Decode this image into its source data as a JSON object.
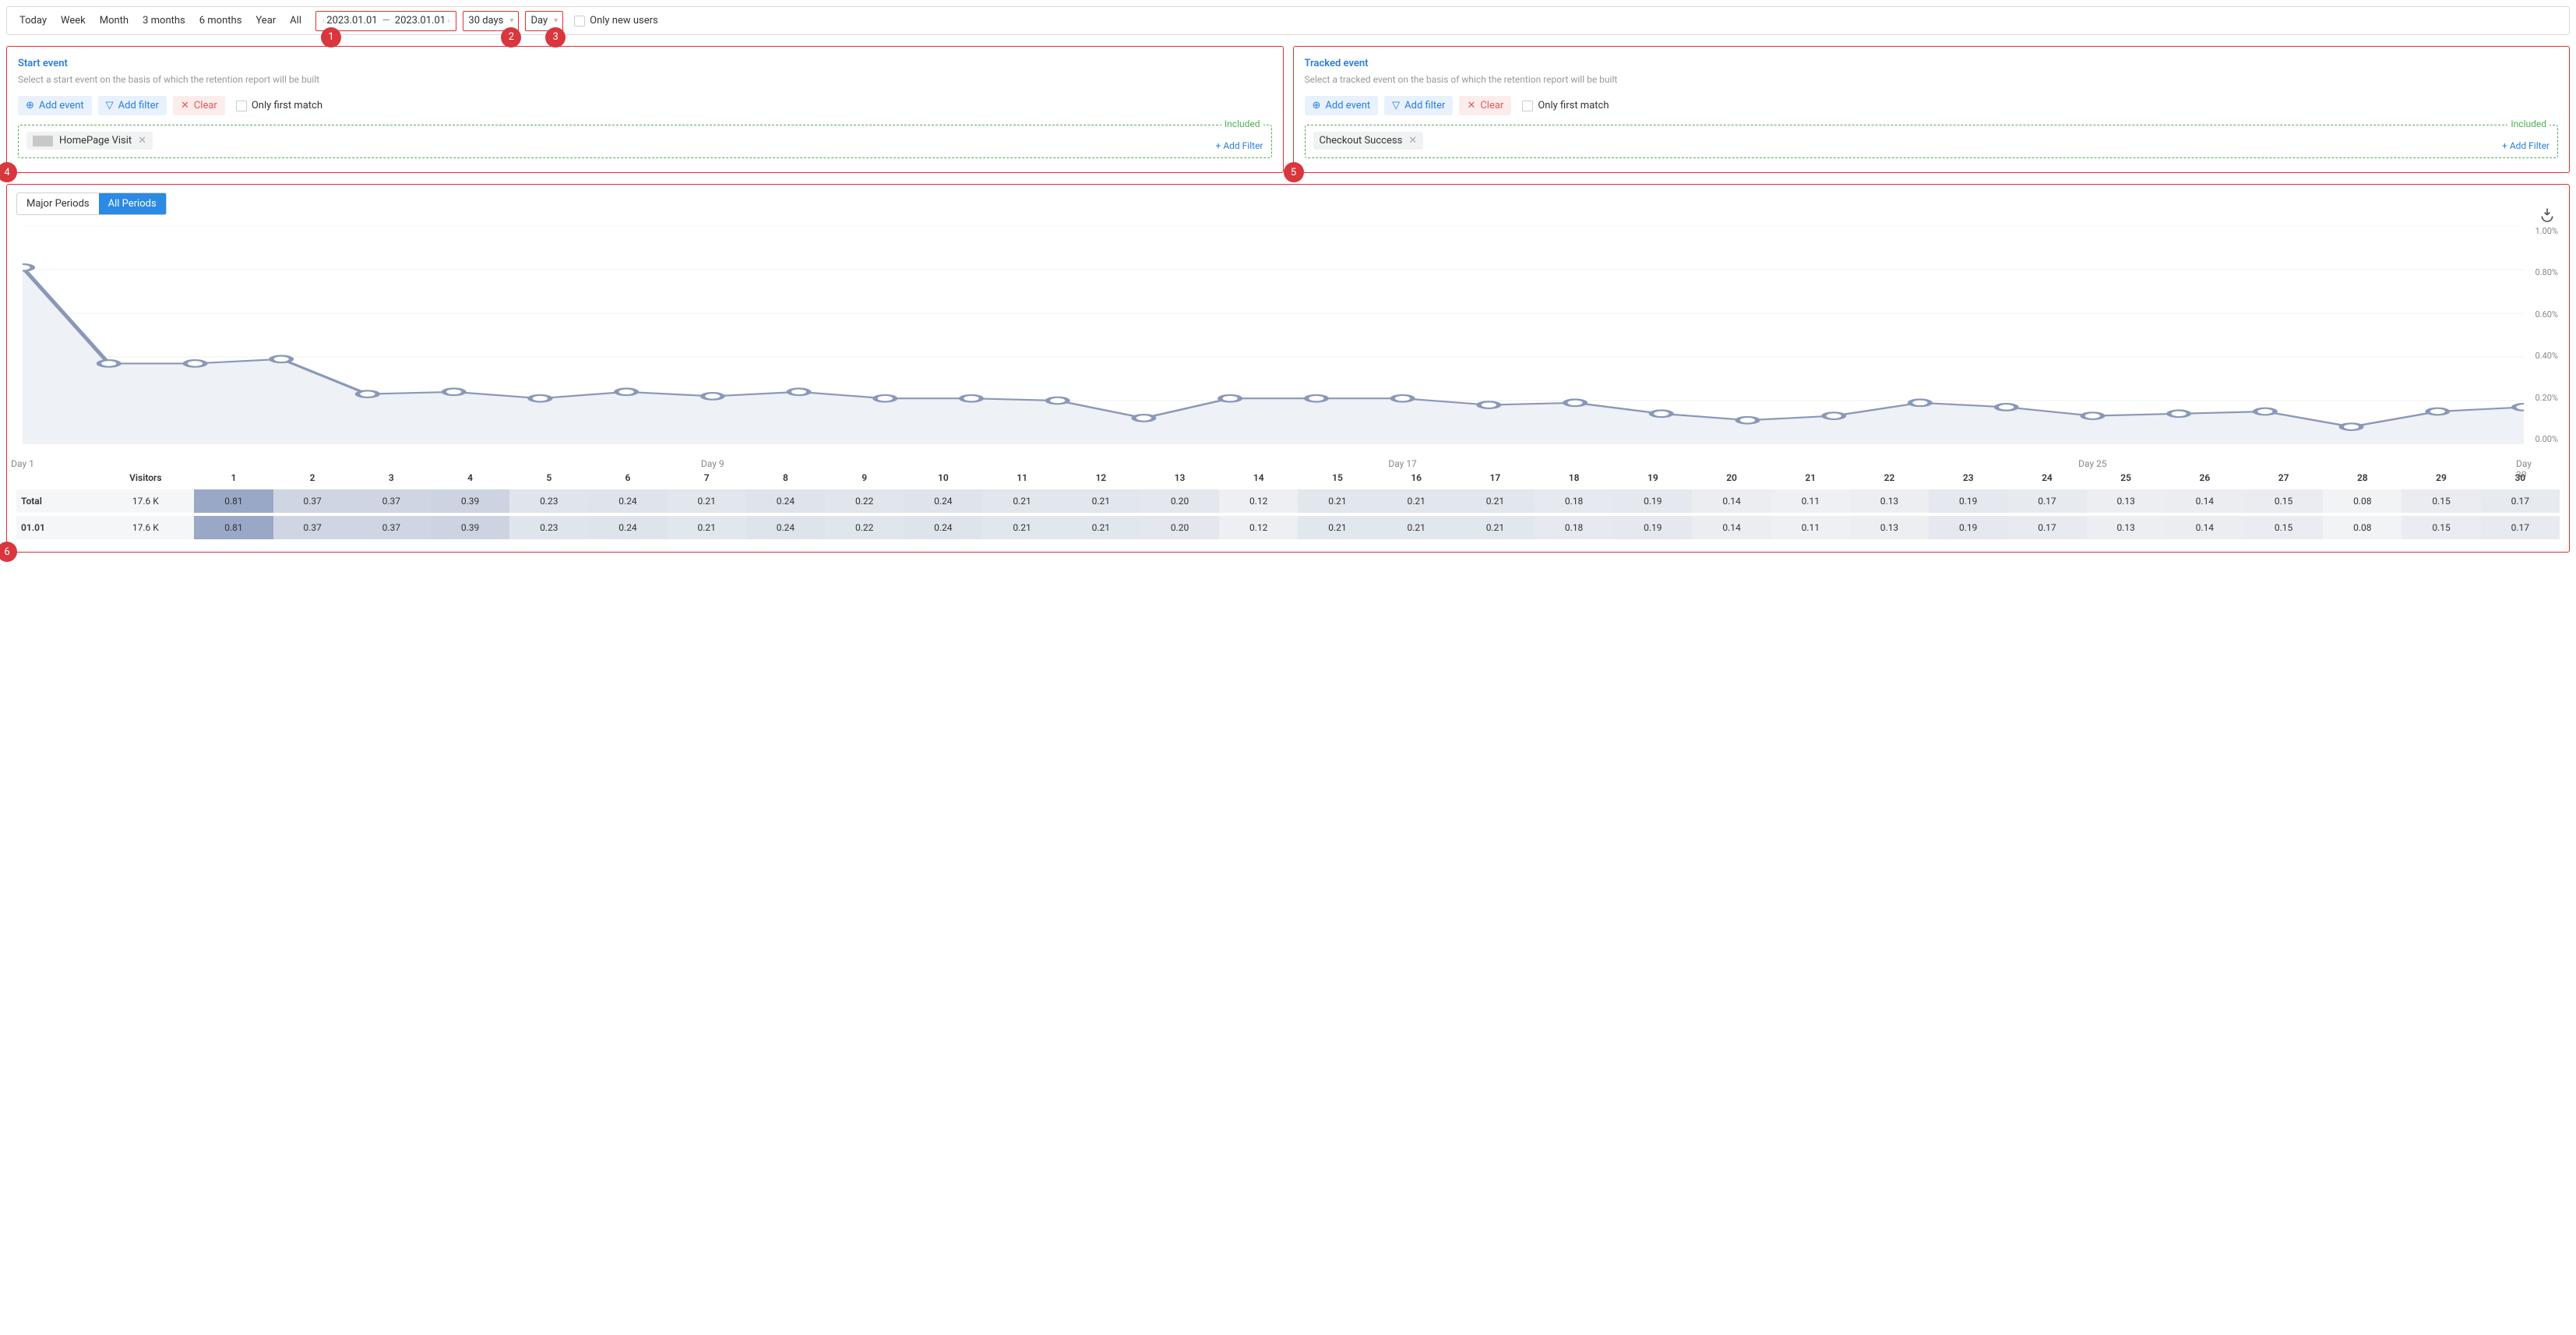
{
  "toolbar": {
    "periods": [
      "Today",
      "Week",
      "Month",
      "3 months",
      "6 months",
      "Year",
      "All"
    ],
    "date_from": "2023.01.01",
    "date_to": "2023.01.01",
    "range_label": "30 days",
    "granularity_label": "Day",
    "only_new_users_label": "Only new users"
  },
  "badges": {
    "b1": "1",
    "b2": "2",
    "b3": "3",
    "b4": "4",
    "b5": "5",
    "b6": "6"
  },
  "start_event": {
    "title": "Start event",
    "subtitle": "Select a start event on the basis of which the retention report will be built",
    "add_event": "Add event",
    "add_filter": "Add filter",
    "clear": "Clear",
    "only_first_match": "Only first match",
    "included_label": "Included",
    "tag_label": "HomePage Visit",
    "add_filter_link": "+  Add Filter"
  },
  "tracked_event": {
    "title": "Tracked event",
    "subtitle": "Select a tracked event on the basis of which the retention report will be built",
    "add_event": "Add event",
    "add_filter": "Add filter",
    "clear": "Clear",
    "only_first_match": "Only first match",
    "included_label": "Included",
    "tag_label": "Checkout Success",
    "add_filter_link": "+  Add Filter"
  },
  "chart": {
    "tabs": {
      "major": "Major Periods",
      "all": "All Periods"
    },
    "ylim": [
      0,
      1.0
    ],
    "yticks": [
      "1.00%",
      "0.80%",
      "0.60%",
      "0.40%",
      "0.20%",
      "0.00%"
    ],
    "xticks": [
      {
        "label": "Day 1",
        "idx": 0
      },
      {
        "label": "Day 9",
        "idx": 8
      },
      {
        "label": "Day 17",
        "idx": 16
      },
      {
        "label": "Day 25",
        "idx": 24
      },
      {
        "label": "Day 30",
        "idx": 29
      }
    ],
    "values": [
      0.81,
      0.37,
      0.37,
      0.39,
      0.23,
      0.24,
      0.21,
      0.24,
      0.22,
      0.24,
      0.21,
      0.21,
      0.2,
      0.12,
      0.21,
      0.21,
      0.21,
      0.18,
      0.19,
      0.14,
      0.11,
      0.13,
      0.19,
      0.17,
      0.13,
      0.14,
      0.15,
      0.08,
      0.15,
      0.17
    ],
    "line_color": "#8a98b8",
    "marker_fill": "#ffffff",
    "marker_stroke": "#8a98b8",
    "marker_radius": 4,
    "area_fill": "#eef1f6",
    "grid_color": "#f2f2f2"
  },
  "table": {
    "header_first": "Visitors",
    "day_headers": [
      "1",
      "2",
      "3",
      "4",
      "5",
      "6",
      "7",
      "8",
      "9",
      "10",
      "11",
      "12",
      "13",
      "14",
      "15",
      "16",
      "17",
      "18",
      "19",
      "20",
      "21",
      "22",
      "23",
      "24",
      "25",
      "26",
      "27",
      "28",
      "29",
      "30"
    ],
    "rows": [
      {
        "label": "Total",
        "visitors": "17.6 K",
        "cells": [
          0.81,
          0.37,
          0.37,
          0.39,
          0.23,
          0.24,
          0.21,
          0.24,
          0.22,
          0.24,
          0.21,
          0.21,
          0.2,
          0.12,
          0.21,
          0.21,
          0.21,
          0.18,
          0.19,
          0.14,
          0.11,
          0.13,
          0.19,
          0.17,
          0.13,
          0.14,
          0.15,
          0.08,
          0.15,
          0.17
        ]
      },
      {
        "label": "01.01",
        "visitors": "17.6 K",
        "cells": [
          0.81,
          0.37,
          0.37,
          0.39,
          0.23,
          0.24,
          0.21,
          0.24,
          0.22,
          0.24,
          0.21,
          0.21,
          0.2,
          0.12,
          0.21,
          0.21,
          0.21,
          0.18,
          0.19,
          0.14,
          0.11,
          0.13,
          0.19,
          0.17,
          0.13,
          0.14,
          0.15,
          0.08,
          0.15,
          0.17
        ]
      }
    ],
    "cell_color_scale": {
      "min_color": "#f2f3f5",
      "max_color": "#9aa8c7"
    }
  }
}
